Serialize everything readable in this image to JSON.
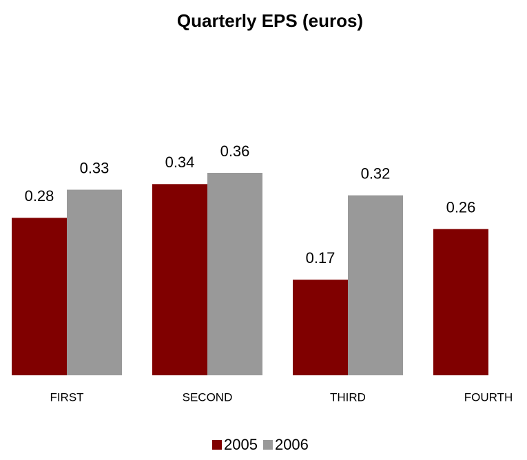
{
  "chart_data": {
    "type": "bar",
    "title": "Quarterly EPS (euros)",
    "categories": [
      "FIRST",
      "SECOND",
      "THIRD",
      "FOURTH"
    ],
    "series": [
      {
        "name": "2005",
        "color": "#800000",
        "values": [
          0.28,
          0.34,
          0.17,
          0.26
        ]
      },
      {
        "name": "2006",
        "color": "#999999",
        "values": [
          0.33,
          0.36,
          0.32,
          null
        ]
      }
    ],
    "legend": "bottom"
  }
}
